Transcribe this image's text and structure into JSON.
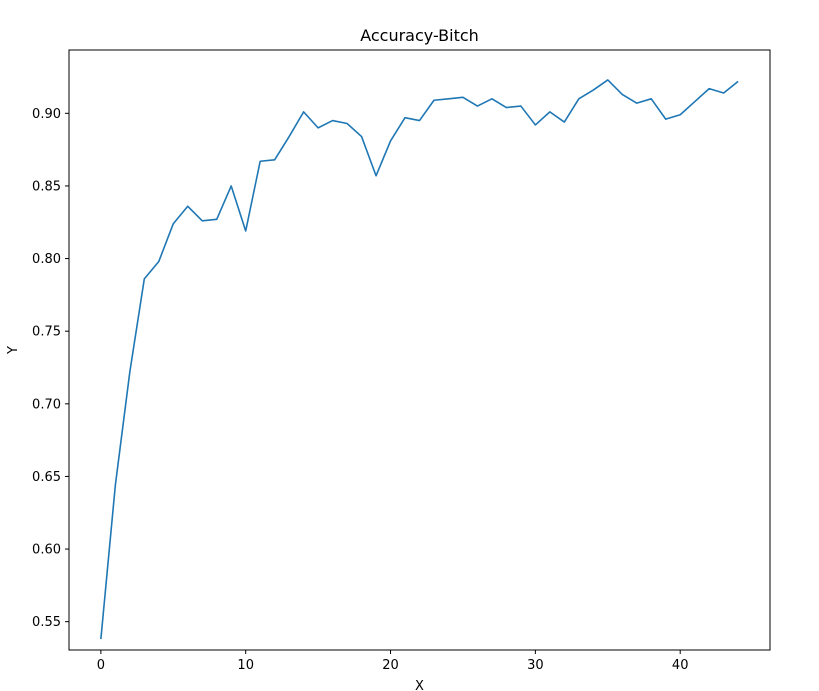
{
  "chart_data": {
    "type": "line",
    "title": "Accuracy-Bitch",
    "xlabel": "X",
    "ylabel": "Y",
    "xlim": [
      -2.2,
      46.2
    ],
    "ylim": [
      0.5305,
      0.9436
    ],
    "xticks": [
      0,
      10,
      20,
      30,
      40
    ],
    "yticks": [
      0.55,
      0.6,
      0.65,
      0.7,
      0.75,
      0.8,
      0.85,
      0.9
    ],
    "grid": false,
    "line_color": "#1f77b4",
    "series": [
      {
        "x": [
          0,
          1,
          2,
          3,
          4,
          5,
          6,
          7,
          8,
          9,
          10,
          11,
          12,
          13,
          14,
          15,
          16,
          17,
          18,
          19,
          20,
          21,
          22,
          23,
          24,
          25,
          26,
          27,
          28,
          29,
          30,
          31,
          32,
          33,
          34,
          35,
          36,
          37,
          38,
          39,
          40,
          41,
          42,
          43,
          44
        ],
        "values": [
          0.538,
          0.644,
          0.722,
          0.786,
          0.798,
          0.824,
          0.836,
          0.826,
          0.827,
          0.85,
          0.819,
          0.867,
          0.868,
          0.884,
          0.901,
          0.89,
          0.895,
          0.893,
          0.884,
          0.857,
          0.881,
          0.897,
          0.895,
          0.909,
          0.91,
          0.911,
          0.905,
          0.91,
          0.904,
          0.905,
          0.892,
          0.901,
          0.894,
          0.91,
          0.916,
          0.923,
          0.913,
          0.907,
          0.91,
          0.896,
          0.899,
          0.908,
          0.917,
          0.914,
          0.922
        ]
      }
    ]
  }
}
